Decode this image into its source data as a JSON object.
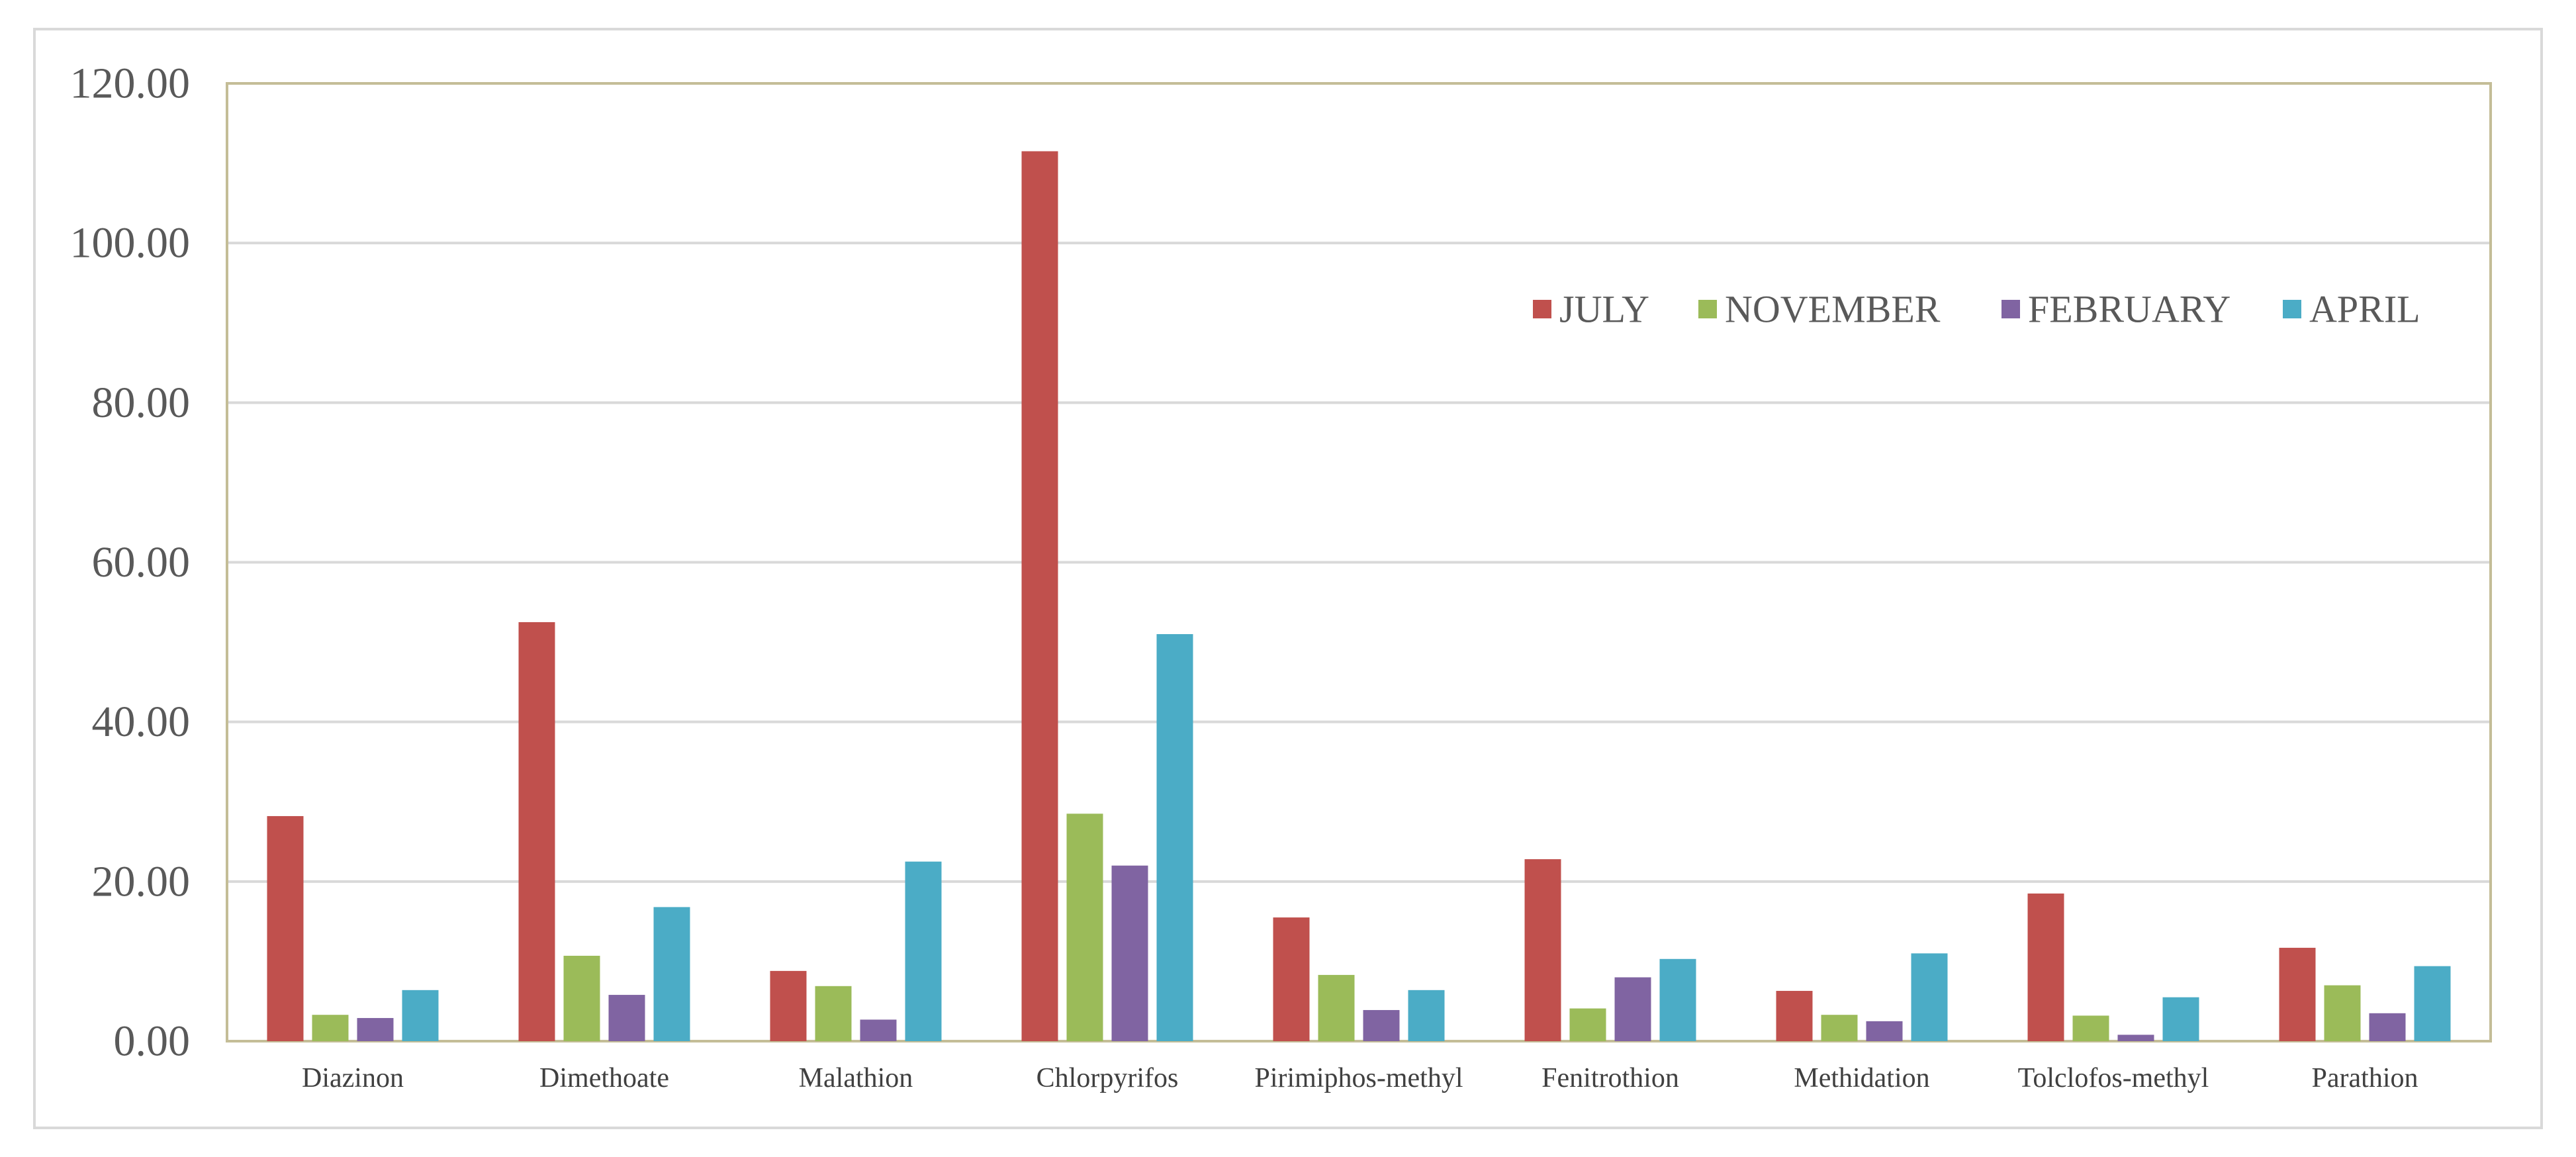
{
  "chart_data": {
    "type": "bar",
    "title": "",
    "xlabel": "",
    "ylabel": "",
    "ylim": [
      0,
      120
    ],
    "yticks": [
      "0.00",
      "20.00",
      "40.00",
      "60.00",
      "80.00",
      "100.00",
      "120.00"
    ],
    "grid": true,
    "legend_position": "top-right",
    "categories": [
      "Diazinon",
      "Dimethoate",
      "Malathion",
      "Chlorpyrifos",
      "Pirimiphos-methyl",
      "Fenitrothion",
      "Methidation",
      "Tolclofos-methyl",
      "Parathion"
    ],
    "series": [
      {
        "name": "JULY",
        "color": "#c0504d",
        "values": [
          28.2,
          52.5,
          8.8,
          111.5,
          15.5,
          22.8,
          6.3,
          18.5,
          11.7
        ]
      },
      {
        "name": "NOVEMBER",
        "color": "#9bbb59",
        "values": [
          3.3,
          10.7,
          6.9,
          28.5,
          8.3,
          4.1,
          3.3,
          3.2,
          7.0
        ]
      },
      {
        "name": "FEBRUARY",
        "color": "#8064a2",
        "values": [
          2.9,
          5.8,
          2.7,
          22.0,
          3.9,
          8.0,
          2.5,
          0.8,
          3.5
        ]
      },
      {
        "name": "APRIL",
        "color": "#4bacc6",
        "values": [
          6.4,
          16.8,
          22.5,
          51.0,
          6.4,
          10.3,
          11.0,
          5.5,
          9.4
        ]
      }
    ]
  }
}
